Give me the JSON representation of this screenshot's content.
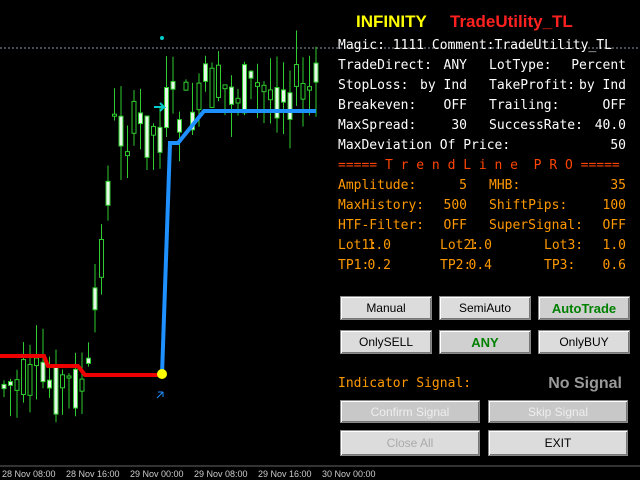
{
  "header": {
    "title": "INFINITY",
    "subtitle": "TradeUtility_TL"
  },
  "panel": {
    "rows": [
      [
        {
          "label": "Magic: 1111 Comment:TradeUtility_TL"
        }
      ],
      [
        {
          "label": "TradeDirect:",
          "value": "ANY"
        },
        {
          "label": "LotType:",
          "value": "Percent"
        }
      ],
      [
        {
          "label": "StopLoss:",
          "value": "by Ind"
        },
        {
          "label": "TakeProfit:",
          "value": "by Ind"
        }
      ],
      [
        {
          "label": "Breakeven:",
          "value": "OFF"
        },
        {
          "label": "Trailing:",
          "value": "OFF"
        }
      ],
      [
        {
          "label": "MaxSpread:",
          "value": "30"
        },
        {
          "label": "SuccessRate:",
          "value": "40.0"
        }
      ],
      [
        {
          "label": "MaxDeviation Of Price:",
          "value": "50"
        }
      ]
    ],
    "section": "===== T r e n d L i n e  P R O =====",
    "trend_rows": [
      [
        {
          "label": "Amplitude:",
          "value": "5"
        },
        {
          "label": "MHB:",
          "value": "35"
        }
      ],
      [
        {
          "label": "MaxHistory:",
          "value": "500"
        },
        {
          "label": "ShiftPips:",
          "value": "100"
        }
      ],
      [
        {
          "label": "HTF-Filter:",
          "value": "OFF"
        },
        {
          "label": "SuperSignal:",
          "value": "OFF"
        }
      ],
      [
        {
          "label": "Lot1:",
          "value": "1.0"
        },
        {
          "label": "Lot2:",
          "value": "1.0"
        },
        {
          "label": "Lot3:",
          "value": "1.0"
        }
      ],
      [
        {
          "label": "TP1:",
          "value": "0.2"
        },
        {
          "label": "TP2:",
          "value": "0.4"
        },
        {
          "label": "TP3:",
          "value": "0.6"
        }
      ]
    ]
  },
  "buttons": {
    "mode": [
      "Manual",
      "SemiAuto",
      "AutoTrade"
    ],
    "direction": [
      "OnlySELL",
      "ANY",
      "OnlyBUY"
    ]
  },
  "signal": {
    "label": "Indicator Signal:",
    "value": "No Signal"
  },
  "actions": {
    "row1": [
      "Confirm Signal",
      "Skip Signal"
    ],
    "row2": [
      "Close All",
      "EXIT"
    ]
  },
  "time_axis": [
    "28 Nov 08:00",
    "28 Nov 16:00",
    "29 Nov 00:00",
    "29 Nov 08:00",
    "29 Nov 16:00",
    "30 Nov 00:00"
  ]
}
